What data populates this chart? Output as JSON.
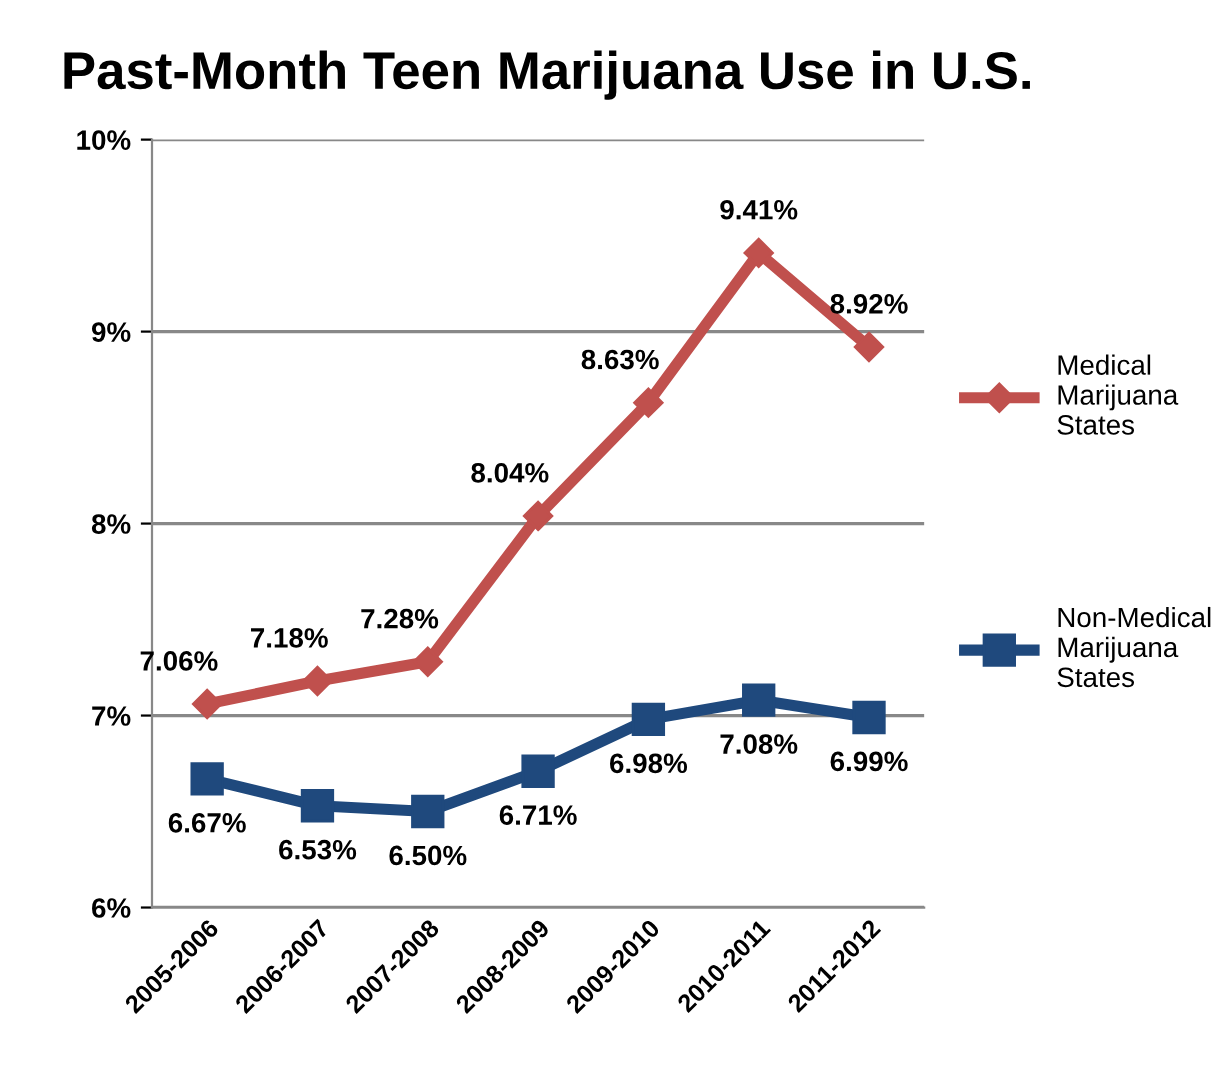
{
  "chart_data": {
    "type": "line",
    "title": "Past-Month Teen Marijuana Use in U.S.",
    "categories": [
      "2005-2006",
      "2006-2007",
      "2007-2008",
      "2008-2009",
      "2009-2010",
      "2010-2011",
      "2011-2012"
    ],
    "series": [
      {
        "name": "Medical Marijuana States",
        "color": "#c0504d",
        "marker": "diamond",
        "values": [
          7.06,
          7.18,
          7.28,
          8.04,
          8.63,
          9.41,
          8.92
        ],
        "value_labels": [
          "7.06%",
          "7.18%",
          "7.28%",
          "8.04%",
          "8.63%",
          "9.41%",
          "8.92%"
        ]
      },
      {
        "name": "Non-Medical Marijuana States",
        "color": "#1f497d",
        "marker": "square",
        "values": [
          6.67,
          6.53,
          6.5,
          6.71,
          6.98,
          7.08,
          6.99
        ],
        "value_labels": [
          "6.67%",
          "6.53%",
          "6.50%",
          "6.71%",
          "6.98%",
          "7.08%",
          "6.99%"
        ]
      }
    ],
    "ylim": [
      6,
      10
    ],
    "yticks": [
      {
        "value": 6,
        "label": "6%"
      },
      {
        "value": 7,
        "label": "7%"
      },
      {
        "value": 8,
        "label": "8%"
      },
      {
        "value": 9,
        "label": "9%"
      },
      {
        "value": 10,
        "label": "10%"
      }
    ],
    "grid": "y",
    "legend": "right",
    "line_style": "solid"
  }
}
